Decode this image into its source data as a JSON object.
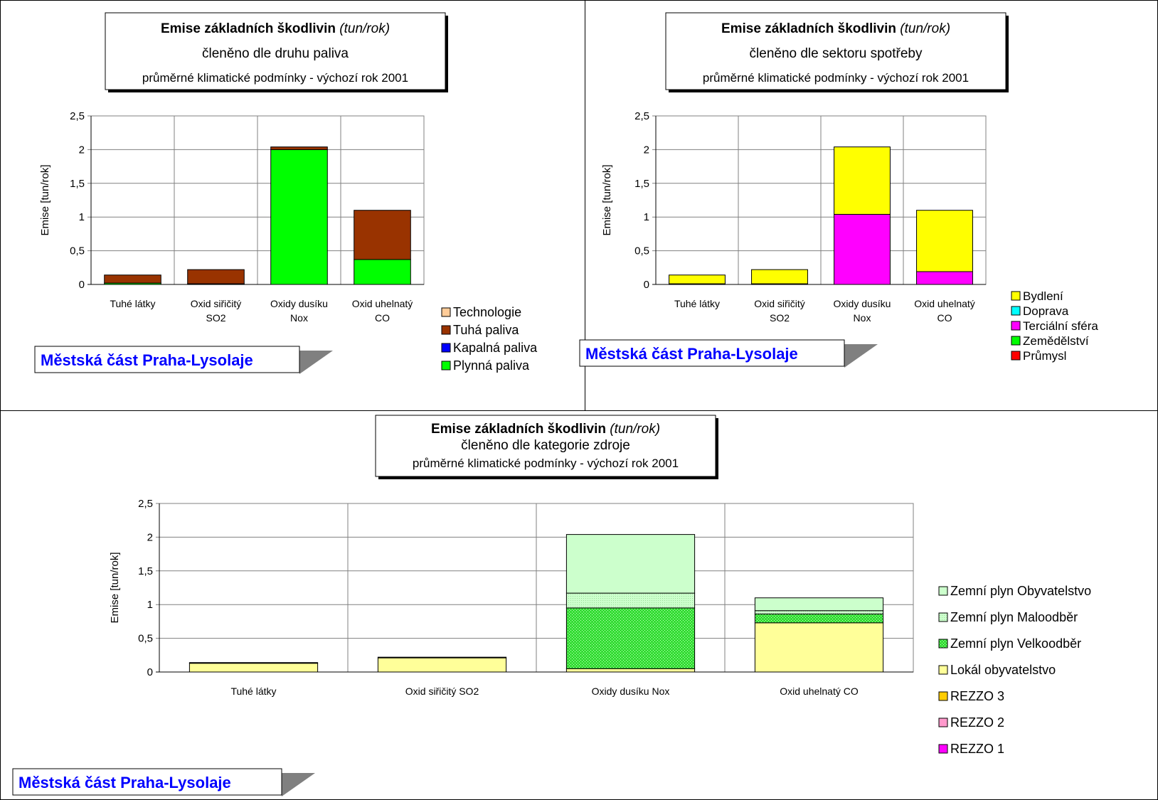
{
  "chart_data": [
    {
      "type": "bar",
      "stacked": true,
      "title": "Emise základních škodlivin",
      "title_unit": "(tun/rok)",
      "subtitle": "členěno dle druhu paliva",
      "subtitle2": "průměrné klimatické podmínky - výchozí rok 2001",
      "ylabel": "Emise [tun/rok]",
      "ylim": [
        0,
        2.5
      ],
      "yticks": [
        "0",
        "0,5",
        "1",
        "1,5",
        "2",
        "2,5"
      ],
      "categories": [
        "Tuhé látky",
        "Oxid siřičitý SO2",
        "Oxidy dusíku Nox",
        "Oxid uhelnatý CO"
      ],
      "category_lines": [
        [
          "Tuhé látky"
        ],
        [
          "Oxid siřičitý",
          "SO2"
        ],
        [
          "Oxidy dusíku",
          "Nox"
        ],
        [
          "Oxid uhelnatý",
          "CO"
        ]
      ],
      "series": [
        {
          "name": "Plynná paliva",
          "color": "#00ff00",
          "values": [
            0.02,
            0.01,
            2.0,
            0.37
          ]
        },
        {
          "name": "Kapalná paliva",
          "color": "#0000ff",
          "values": [
            0.0,
            0.0,
            0.0,
            0.0
          ]
        },
        {
          "name": "Tuhá paliva",
          "color": "#993300",
          "values": [
            0.12,
            0.21,
            0.04,
            0.73
          ]
        },
        {
          "name": "Technologie",
          "color": "#ffcc99",
          "values": [
            0.0,
            0.0,
            0.0,
            0.0
          ]
        }
      ],
      "legend_order": [
        "Technologie",
        "Tuhá paliva",
        "Kapalná paliva",
        "Plynná paliva"
      ],
      "grid": true,
      "legend": "bottom-right",
      "badge": "Městská část Praha-Lysolaje"
    },
    {
      "type": "bar",
      "stacked": true,
      "title": "Emise základních škodlivin",
      "title_unit": "(tun/rok)",
      "subtitle": "členěno dle sektoru spotřeby",
      "subtitle2": "průměrné klimatické podmínky - výchozí rok 2001",
      "ylabel": "Emise [tun/rok]",
      "ylim": [
        0,
        2.5
      ],
      "yticks": [
        "0",
        "0,5",
        "1",
        "1,5",
        "2",
        "2,5"
      ],
      "categories": [
        "Tuhé látky",
        "Oxid siřičitý SO2",
        "Oxidy dusíku Nox",
        "Oxid uhelnatý CO"
      ],
      "category_lines": [
        [
          "Tuhé látky"
        ],
        [
          "Oxid siřičitý",
          "SO2"
        ],
        [
          "Oxidy dusíku",
          "Nox"
        ],
        [
          "Oxid uhelnatý",
          "CO"
        ]
      ],
      "series": [
        {
          "name": "Průmysl",
          "color": "#ff0000",
          "values": [
            0.0,
            0.0,
            0.0,
            0.0
          ]
        },
        {
          "name": "Zemědělství",
          "color": "#00ff00",
          "values": [
            0.0,
            0.0,
            0.0,
            0.0
          ]
        },
        {
          "name": "Terciální sféra",
          "color": "#ff00ff",
          "values": [
            0.01,
            0.01,
            1.04,
            0.19
          ]
        },
        {
          "name": "Doprava",
          "color": "#00ffff",
          "values": [
            0.0,
            0.0,
            0.0,
            0.0
          ]
        },
        {
          "name": "Bydlení",
          "color": "#ffff00",
          "values": [
            0.13,
            0.21,
            1.0,
            0.91
          ]
        }
      ],
      "legend_order": [
        "Bydlení",
        "Doprava",
        "Terciální sféra",
        "Zemědělství",
        "Průmysl"
      ],
      "grid": true,
      "legend": "bottom-right",
      "badge": "Městská část Praha-Lysolaje"
    },
    {
      "type": "bar",
      "stacked": true,
      "title": "Emise základních škodlivin",
      "title_unit": "(tun/rok)",
      "subtitle": "členěno dle kategorie zdroje",
      "subtitle2": "průměrné klimatické podmínky - výchozí rok 2001",
      "ylabel": "Emise [tun/rok]",
      "ylim": [
        0,
        2.5
      ],
      "yticks": [
        "0",
        "0,5",
        "1",
        "1,5",
        "2",
        "2,5"
      ],
      "categories": [
        "Tuhé látky",
        "Oxid siřičitý SO2",
        "Oxidy dusíku Nox",
        "Oxid uhelnatý CO"
      ],
      "category_lines": [
        [
          "Tuhé látky"
        ],
        [
          "Oxid siřičitý SO2"
        ],
        [
          "Oxidy dusíku Nox"
        ],
        [
          "Oxid uhelnatý CO"
        ]
      ],
      "series": [
        {
          "name": "REZZO 1",
          "color": "#ff00ff",
          "values": [
            0.0,
            0.0,
            0.0,
            0.0
          ]
        },
        {
          "name": "REZZO 2",
          "color": "#ff99cc",
          "values": [
            0.0,
            0.0,
            0.0,
            0.0
          ]
        },
        {
          "name": "REZZO 3",
          "color": "#ffcc00",
          "values": [
            0.0,
            0.0,
            0.0,
            0.0
          ]
        },
        {
          "name": "Lokál obyvatelstvo",
          "color": "#ffff99",
          "values": [
            0.13,
            0.21,
            0.05,
            0.73
          ]
        },
        {
          "name": "Zemní plyn Velkoodběr",
          "color": "#33dd33",
          "pattern": "dots",
          "values": [
            0.0,
            0.0,
            0.9,
            0.13
          ]
        },
        {
          "name": "Zemní plyn Maloodběr",
          "color": "#ccffcc",
          "pattern": "fine-dots",
          "values": [
            0.0,
            0.0,
            0.22,
            0.05
          ]
        },
        {
          "name": "Zemní plyn Obyvatelstvo",
          "color": "#ccffcc",
          "values": [
            0.01,
            0.01,
            0.87,
            0.19
          ]
        }
      ],
      "legend_order": [
        "Zemní plyn Obyvatelstvo",
        "Zemní plyn Maloodběr",
        "Zemní plyn Velkoodběr",
        "Lokál obyvatelstvo",
        "REZZO 3",
        "REZZO 2",
        "REZZO 1"
      ],
      "grid": true,
      "legend": "right",
      "badge": "Městská část Praha-Lysolaje"
    }
  ]
}
